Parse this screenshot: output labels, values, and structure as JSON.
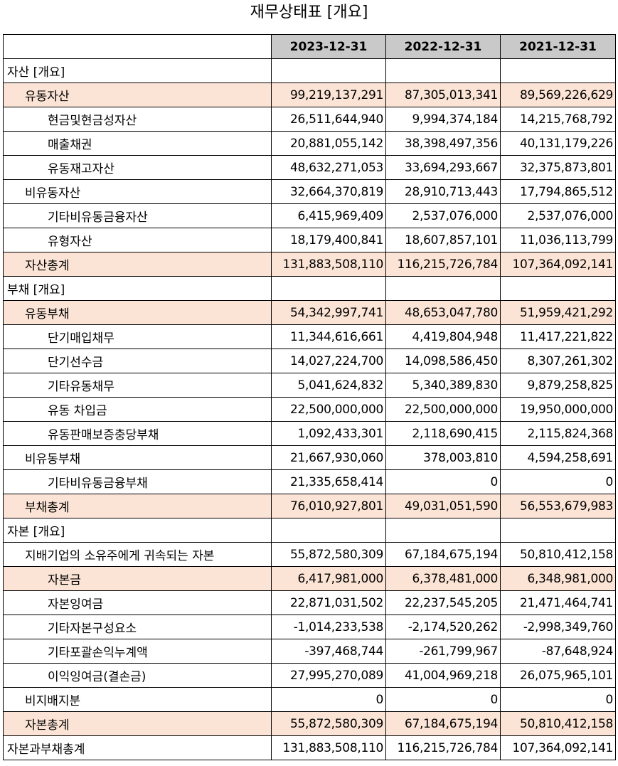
{
  "title": "재무상태표 [개요]",
  "header": {
    "col1": "2023-12-31",
    "col2": "2022-12-31",
    "col3": "2021-12-31"
  },
  "rows": [
    {
      "label": "자산 [개요]",
      "v1": "",
      "v2": "",
      "v3": ""
    },
    {
      "label": "유동자산",
      "v1": "99,219,137,291",
      "v2": "87,305,013,341",
      "v3": "89,569,226,629"
    },
    {
      "label": "현금및현금성자산",
      "v1": "26,511,644,940",
      "v2": "9,994,374,184",
      "v3": "14,215,768,792"
    },
    {
      "label": "매출채권",
      "v1": "20,881,055,142",
      "v2": "38,398,497,356",
      "v3": "40,131,179,226"
    },
    {
      "label": "유동재고자산",
      "v1": "48,632,271,053",
      "v2": "33,694,293,667",
      "v3": "32,375,873,801"
    },
    {
      "label": "비유동자산",
      "v1": "32,664,370,819",
      "v2": "28,910,713,443",
      "v3": "17,794,865,512"
    },
    {
      "label": "기타비유동금융자산",
      "v1": "6,415,969,409",
      "v2": "2,537,076,000",
      "v3": "2,537,076,000"
    },
    {
      "label": "유형자산",
      "v1": "18,179,400,841",
      "v2": "18,607,857,101",
      "v3": "11,036,113,799"
    },
    {
      "label": "자산총계",
      "v1": "131,883,508,110",
      "v2": "116,215,726,784",
      "v3": "107,364,092,141"
    },
    {
      "label": "부채 [개요]",
      "v1": "",
      "v2": "",
      "v3": ""
    },
    {
      "label": "유동부채",
      "v1": "54,342,997,741",
      "v2": "48,653,047,780",
      "v3": "51,959,421,292"
    },
    {
      "label": "단기매입채무",
      "v1": "11,344,616,661",
      "v2": "4,419,804,948",
      "v3": "11,417,221,822"
    },
    {
      "label": "단기선수금",
      "v1": "14,027,224,700",
      "v2": "14,098,586,450",
      "v3": "8,307,261,302"
    },
    {
      "label": "기타유동채무",
      "v1": "5,041,624,832",
      "v2": "5,340,389,830",
      "v3": "9,879,258,825"
    },
    {
      "label": "유동 차입금",
      "v1": "22,500,000,000",
      "v2": "22,500,000,000",
      "v3": "19,950,000,000"
    },
    {
      "label": "유동판매보증충당부채",
      "v1": "1,092,433,301",
      "v2": "2,118,690,415",
      "v3": "2,115,824,368"
    },
    {
      "label": "비유동부채",
      "v1": "21,667,930,060",
      "v2": "378,003,810",
      "v3": "4,594,258,691"
    },
    {
      "label": "기타비유동금융부채",
      "v1": "21,335,658,414",
      "v2": "0",
      "v3": "0"
    },
    {
      "label": "부채총계",
      "v1": "76,010,927,801",
      "v2": "49,031,051,590",
      "v3": "56,553,679,983"
    },
    {
      "label": "자본 [개요]",
      "v1": "",
      "v2": "",
      "v3": ""
    },
    {
      "label": "지배기업의 소유주에게 귀속되는 자본",
      "v1": "55,872,580,309",
      "v2": "67,184,675,194",
      "v3": "50,810,412,158"
    },
    {
      "label": "자본금",
      "v1": "6,417,981,000",
      "v2": "6,378,481,000",
      "v3": "6,348,981,000"
    },
    {
      "label": "자본잉여금",
      "v1": "22,871,031,502",
      "v2": "22,237,545,205",
      "v3": "21,471,464,741"
    },
    {
      "label": "기타자본구성요소",
      "v1": "-1,014,233,538",
      "v2": "-2,174,520,262",
      "v3": "-2,998,349,760"
    },
    {
      "label": "기타포괄손익누계액",
      "v1": "-397,468,744",
      "v2": "-261,799,967",
      "v3": "-87,648,924"
    },
    {
      "label": "이익잉여금(결손금)",
      "v1": "27,995,270,089",
      "v2": "41,004,969,218",
      "v3": "26,075,965,101"
    },
    {
      "label": "비지배지분",
      "v1": "0",
      "v2": "0",
      "v3": "0"
    },
    {
      "label": "자본총계",
      "v1": "55,872,580,309",
      "v2": "67,184,675,194",
      "v3": "50,810,412,158"
    },
    {
      "label": "자본과부채총계",
      "v1": "131,883,508,110",
      "v2": "116,215,726,784",
      "v3": "107,364,092,141"
    }
  ],
  "colors": {
    "header_bg": "#c9c9c9",
    "highlight_bg": "#fbe4d5"
  }
}
